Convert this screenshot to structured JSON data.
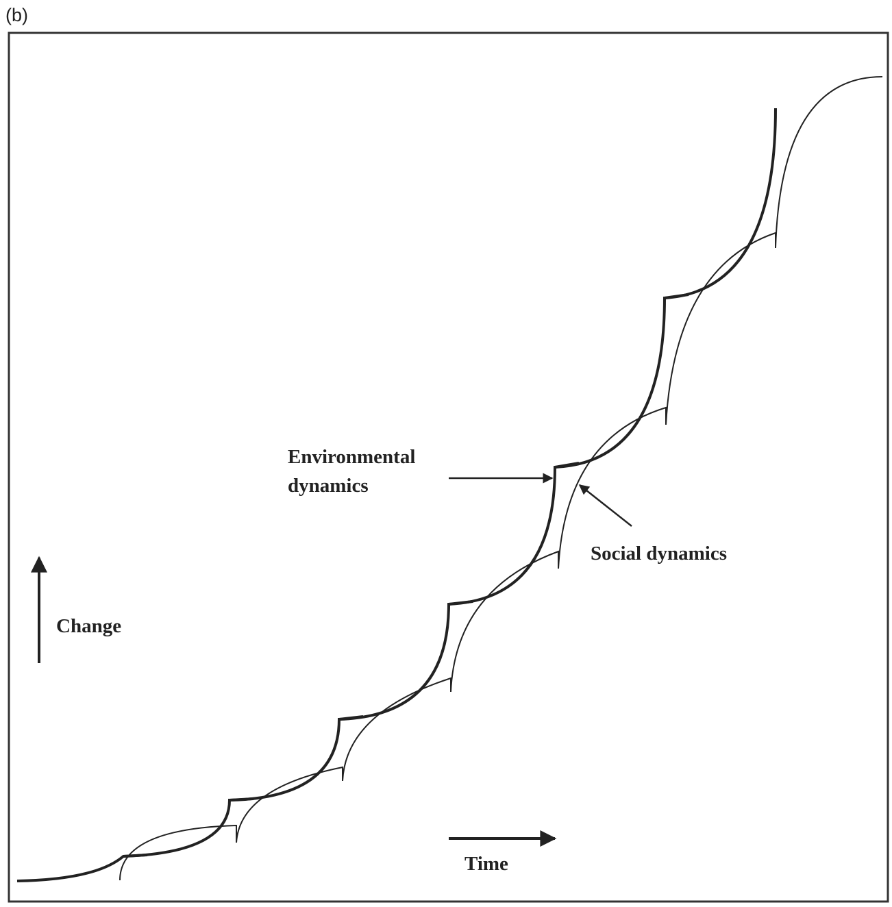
{
  "panel_label": "(b)",
  "labels": {
    "environmental": [
      "Environmental",
      "dynamics"
    ],
    "social": "Social dynamics",
    "y_axis": "Change",
    "x_axis": "Time"
  }
}
